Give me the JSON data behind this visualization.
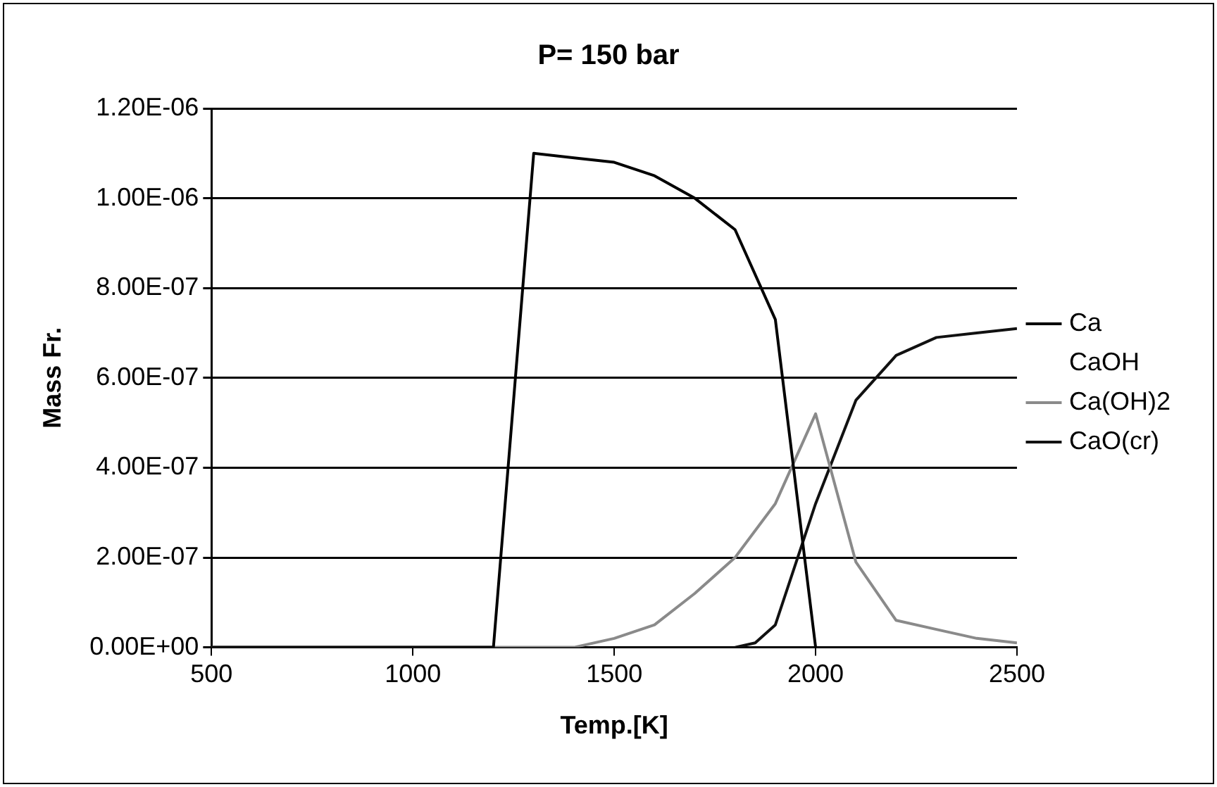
{
  "chart_data": {
    "type": "line",
    "title": "P= 150 bar",
    "xlabel": "Temp.[K]",
    "ylabel": "Mass Fr.",
    "xlim": [
      500,
      2500
    ],
    "xticks": [
      500,
      1000,
      1500,
      2000,
      2500
    ],
    "ylim": [
      0,
      1.2e-06
    ],
    "yticks": [
      {
        "value": 0,
        "label": "0.00E+00"
      },
      {
        "value": 2e-07,
        "label": "2.00E-07"
      },
      {
        "value": 4e-07,
        "label": "4.00E-07"
      },
      {
        "value": 6e-07,
        "label": "6.00E-07"
      },
      {
        "value": 8e-07,
        "label": "8.00E-07"
      },
      {
        "value": 1e-06,
        "label": "1.00E-06"
      },
      {
        "value": 1.2e-06,
        "label": "1.20E-06"
      }
    ],
    "grid": "y",
    "legend": "right",
    "marker": "none",
    "line_style": "solid",
    "series": [
      {
        "name": "Ca",
        "color": "#000000",
        "x": [
          500,
          1000,
          1200,
          1300,
          1400,
          1500,
          1600,
          1700,
          1800,
          1900,
          2000
        ],
        "values": [
          0,
          0,
          0,
          1.1e-06,
          1.09e-06,
          1.08e-06,
          1.05e-06,
          1e-06,
          9.3e-07,
          7.3e-07,
          0
        ]
      },
      {
        "name": "CaOH"
      },
      {
        "name": "Ca(OH)2",
        "color": "#8a8a8a",
        "x": [
          500,
          1300,
          1400,
          1500,
          1600,
          1700,
          1800,
          1900,
          2000,
          2100,
          2200,
          2300,
          2400,
          2500
        ],
        "values": [
          0,
          0,
          0,
          2e-08,
          5e-08,
          1.2e-07,
          2e-07,
          3.2e-07,
          5.2e-07,
          1.9e-07,
          6e-08,
          4e-08,
          2e-08,
          1e-08
        ]
      },
      {
        "name": "CaO(cr)",
        "color": "#111111",
        "x": [
          1800,
          1850,
          1900,
          2000,
          2100,
          2200,
          2300,
          2400,
          2500
        ],
        "values": [
          0,
          1e-08,
          5e-08,
          3.2e-07,
          5.5e-07,
          6.5e-07,
          6.9e-07,
          7e-07,
          7.1e-07
        ]
      }
    ]
  }
}
